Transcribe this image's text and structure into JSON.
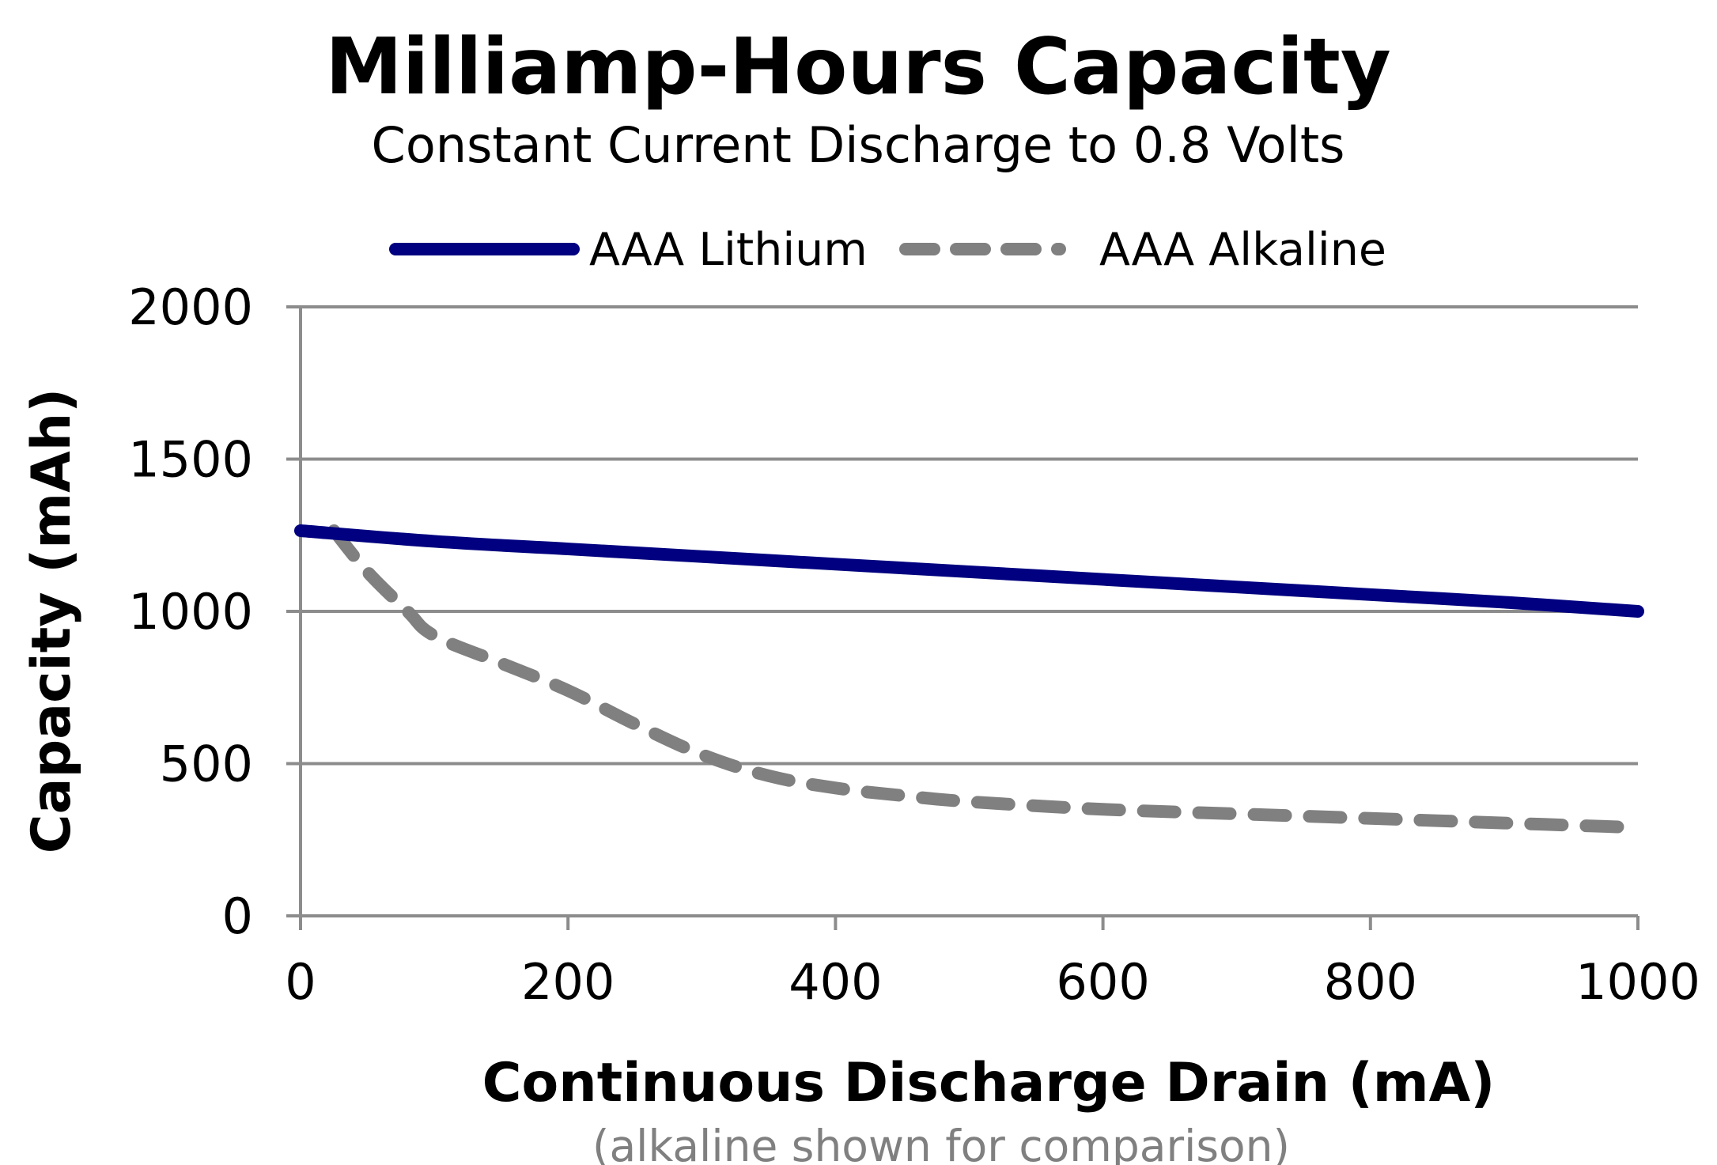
{
  "chart_data": {
    "type": "line",
    "title": "Milliamp-Hours Capacity",
    "subtitle": "Constant Current Discharge to 0.8 Volts",
    "xlabel": "Continuous Discharge Drain (mA)",
    "ylabel": "Capacity (mAh)",
    "footnote": "(alkaline shown for comparison)",
    "xlim": [
      0,
      1000
    ],
    "ylim": [
      0,
      2000
    ],
    "x_ticks": [
      0,
      200,
      400,
      600,
      800,
      1000
    ],
    "y_ticks": [
      0,
      500,
      1000,
      1500,
      2000
    ],
    "x_tick_labels": [
      "0",
      "200",
      "400",
      "600",
      "800",
      "1000"
    ],
    "y_tick_labels": [
      "0",
      "500",
      "1000",
      "1500",
      "2000"
    ],
    "grid": "horizontal",
    "legend_position": "top",
    "series": [
      {
        "name": "AAA Lithium",
        "style": "solid",
        "color": "#000080",
        "x": [
          0,
          100,
          200,
          300,
          400,
          500,
          600,
          700,
          800,
          900,
          1000
        ],
        "y": [
          1265,
          1230,
          1205,
          1180,
          1155,
          1130,
          1105,
          1080,
          1055,
          1030,
          1000
        ]
      },
      {
        "name": "AAA Alkaline",
        "style": "dashed",
        "color": "#808080",
        "x": [
          25,
          50,
          80,
          100,
          150,
          200,
          250,
          300,
          350,
          400,
          450,
          500,
          600,
          700,
          800,
          900,
          1000
        ],
        "y": [
          1265,
          1130,
          1000,
          920,
          830,
          740,
          630,
          530,
          460,
          420,
          395,
          375,
          350,
          335,
          320,
          305,
          290
        ]
      }
    ]
  }
}
